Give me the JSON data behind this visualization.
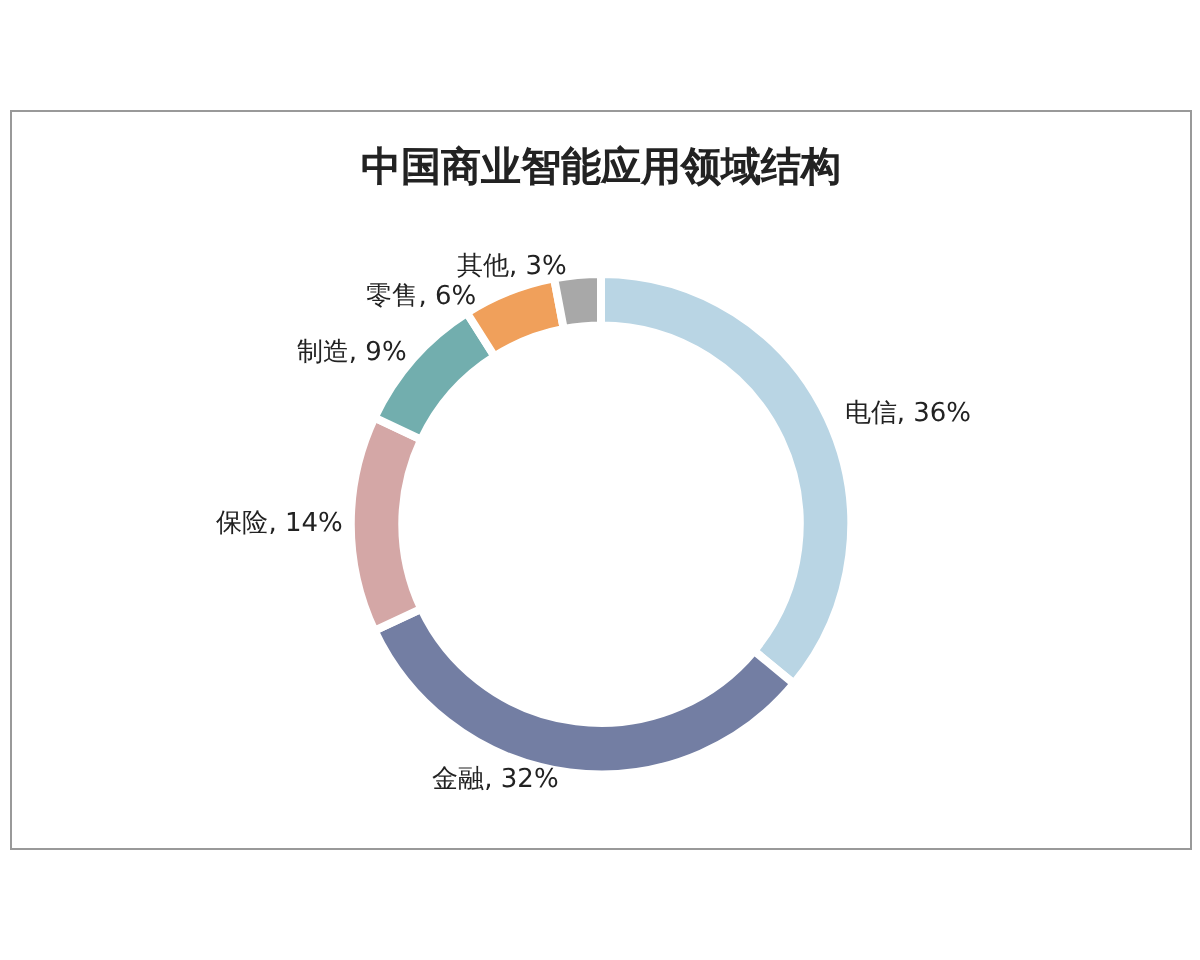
{
  "chart_data": {
    "type": "donut",
    "title": "中国商业智能应用领域结构",
    "categories": [
      "电信",
      "金融",
      "保险",
      "制造",
      "零售",
      "其他"
    ],
    "values": [
      36,
      32,
      14,
      9,
      6,
      3
    ],
    "colors": [
      "#b9d5e4",
      "#737ea3",
      "#d4a7a6",
      "#72aeae",
      "#f0a05b",
      "#a8a8a8"
    ],
    "value_labels": [
      "36%",
      "32%",
      "14%",
      "9%",
      "6%",
      "3%"
    ],
    "legend": false
  }
}
